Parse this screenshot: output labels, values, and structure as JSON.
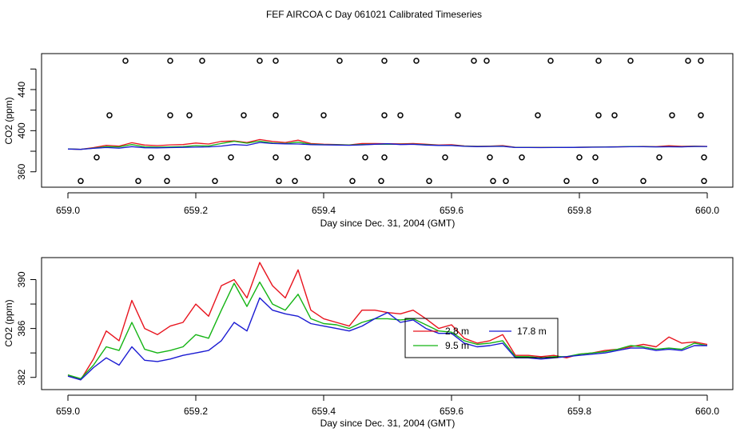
{
  "title": "FEF AIRCOA C  Day 061021  Calibrated Timeseries",
  "colors": {
    "red": "#e8141e",
    "green": "#14b414",
    "blue": "#1a1ad2",
    "axis": "#000000"
  },
  "chart_data": [
    {
      "type": "scatter+line",
      "xlabel": "Day since Dec. 31, 2004 (GMT)",
      "ylabel": "CO2 (ppm)",
      "xlim": [
        659.0,
        660.0
      ],
      "ylim": [
        345,
        475
      ],
      "x_ticks": [
        659.0,
        659.2,
        659.4,
        659.6,
        659.8,
        660.0
      ],
      "x_tick_labels": [
        "659.0",
        "659.2",
        "659.4",
        "659.6",
        "659.8",
        "660.0"
      ],
      "y_ticks": [
        360,
        380,
        400,
        420,
        440,
        460
      ],
      "y_tick_labels": [
        "360",
        "",
        "400",
        "",
        "440",
        ""
      ],
      "points": [
        {
          "x": 659.09,
          "y": 468
        },
        {
          "x": 659.16,
          "y": 468
        },
        {
          "x": 659.21,
          "y": 468
        },
        {
          "x": 659.3,
          "y": 468
        },
        {
          "x": 659.325,
          "y": 468
        },
        {
          "x": 659.425,
          "y": 468
        },
        {
          "x": 659.495,
          "y": 468
        },
        {
          "x": 659.545,
          "y": 468
        },
        {
          "x": 659.635,
          "y": 468
        },
        {
          "x": 659.655,
          "y": 468
        },
        {
          "x": 659.755,
          "y": 468
        },
        {
          "x": 659.83,
          "y": 468
        },
        {
          "x": 659.88,
          "y": 468
        },
        {
          "x": 659.97,
          "y": 468
        },
        {
          "x": 659.99,
          "y": 468
        },
        {
          "x": 659.065,
          "y": 415
        },
        {
          "x": 659.16,
          "y": 415
        },
        {
          "x": 659.19,
          "y": 415
        },
        {
          "x": 659.275,
          "y": 415
        },
        {
          "x": 659.325,
          "y": 415
        },
        {
          "x": 659.4,
          "y": 415
        },
        {
          "x": 659.495,
          "y": 415
        },
        {
          "x": 659.52,
          "y": 415
        },
        {
          "x": 659.61,
          "y": 415
        },
        {
          "x": 659.735,
          "y": 415
        },
        {
          "x": 659.83,
          "y": 415
        },
        {
          "x": 659.855,
          "y": 415
        },
        {
          "x": 659.945,
          "y": 415
        },
        {
          "x": 659.99,
          "y": 415
        },
        {
          "x": 659.045,
          "y": 374
        },
        {
          "x": 659.13,
          "y": 374
        },
        {
          "x": 659.155,
          "y": 374
        },
        {
          "x": 659.255,
          "y": 374
        },
        {
          "x": 659.325,
          "y": 374
        },
        {
          "x": 659.375,
          "y": 374
        },
        {
          "x": 659.465,
          "y": 374
        },
        {
          "x": 659.495,
          "y": 374
        },
        {
          "x": 659.59,
          "y": 374
        },
        {
          "x": 659.66,
          "y": 374
        },
        {
          "x": 659.71,
          "y": 374
        },
        {
          "x": 659.8,
          "y": 374
        },
        {
          "x": 659.825,
          "y": 374
        },
        {
          "x": 659.925,
          "y": 374
        },
        {
          "x": 659.995,
          "y": 374
        },
        {
          "x": 659.02,
          "y": 351
        },
        {
          "x": 659.11,
          "y": 351
        },
        {
          "x": 659.155,
          "y": 351
        },
        {
          "x": 659.23,
          "y": 351
        },
        {
          "x": 659.33,
          "y": 351
        },
        {
          "x": 659.355,
          "y": 351
        },
        {
          "x": 659.445,
          "y": 351
        },
        {
          "x": 659.49,
          "y": 351
        },
        {
          "x": 659.565,
          "y": 351
        },
        {
          "x": 659.665,
          "y": 351
        },
        {
          "x": 659.685,
          "y": 351
        },
        {
          "x": 659.78,
          "y": 351
        },
        {
          "x": 659.825,
          "y": 351
        },
        {
          "x": 659.9,
          "y": 351
        },
        {
          "x": 659.995,
          "y": 351
        }
      ]
    },
    {
      "type": "line",
      "xlabel": "Day since Dec. 31, 2004 (GMT)",
      "ylabel": "CO2 (ppm)",
      "xlim": [
        659.0,
        660.0
      ],
      "ylim": [
        381.0,
        391.8
      ],
      "x_ticks": [
        659.0,
        659.2,
        659.4,
        659.6,
        659.8,
        660.0
      ],
      "x_tick_labels": [
        "659.0",
        "659.2",
        "659.4",
        "659.6",
        "659.8",
        "660.0"
      ],
      "y_ticks": [
        382,
        384,
        386,
        388,
        390
      ],
      "y_tick_labels": [
        "382",
        "",
        "386",
        "",
        "390"
      ],
      "x": [
        659.0,
        659.02,
        659.04,
        659.06,
        659.08,
        659.1,
        659.12,
        659.14,
        659.16,
        659.18,
        659.2,
        659.22,
        659.24,
        659.26,
        659.28,
        659.3,
        659.32,
        659.34,
        659.36,
        659.38,
        659.4,
        659.42,
        659.44,
        659.46,
        659.48,
        659.5,
        659.52,
        659.54,
        659.56,
        659.58,
        659.6,
        659.62,
        659.64,
        659.66,
        659.68,
        659.7,
        659.72,
        659.74,
        659.76,
        659.78,
        659.8,
        659.82,
        659.84,
        659.86,
        659.88,
        659.9,
        659.92,
        659.94,
        659.96,
        659.98,
        660.0
      ],
      "series": [
        {
          "name": "2.8 m",
          "color": "red",
          "values": [
            382.2,
            381.8,
            383.5,
            385.8,
            385.0,
            388.3,
            386.0,
            385.5,
            386.2,
            386.5,
            388.0,
            387.0,
            389.5,
            390.0,
            388.5,
            391.4,
            389.5,
            388.5,
            390.8,
            387.5,
            386.8,
            386.5,
            386.2,
            387.5,
            387.5,
            387.3,
            387.2,
            387.5,
            386.8,
            386.0,
            386.3,
            385.2,
            384.8,
            385.0,
            385.5,
            383.8,
            383.8,
            383.7,
            383.8,
            383.6,
            383.9,
            384.0,
            384.2,
            384.3,
            384.5,
            384.7,
            384.5,
            385.3,
            384.8,
            384.9,
            384.7
          ]
        },
        {
          "name": "9.5 m",
          "color": "green",
          "values": [
            382.2,
            381.9,
            383.0,
            384.5,
            384.2,
            386.5,
            384.3,
            384.0,
            384.2,
            384.5,
            385.5,
            385.2,
            387.5,
            389.7,
            387.8,
            389.8,
            388.0,
            387.5,
            388.8,
            386.8,
            386.4,
            386.3,
            386.0,
            386.5,
            386.8,
            386.8,
            386.7,
            386.8,
            386.3,
            385.8,
            385.7,
            385.0,
            384.7,
            384.8,
            385.0,
            383.7,
            383.7,
            383.6,
            383.7,
            383.7,
            383.9,
            384.0,
            384.1,
            384.3,
            384.6,
            384.5,
            384.3,
            384.4,
            384.3,
            384.8,
            384.6
          ]
        },
        {
          "name": "17.8 m",
          "color": "blue",
          "values": [
            382.1,
            381.8,
            382.8,
            383.6,
            383.0,
            384.5,
            383.4,
            383.3,
            383.5,
            383.8,
            384.0,
            384.2,
            385.0,
            386.5,
            385.8,
            388.5,
            387.5,
            387.2,
            387.0,
            386.4,
            386.2,
            386.0,
            385.8,
            386.2,
            386.8,
            387.3,
            386.5,
            386.7,
            386.0,
            385.6,
            385.6,
            384.8,
            384.5,
            384.6,
            384.8,
            383.6,
            383.6,
            383.5,
            383.6,
            383.7,
            383.8,
            383.9,
            384.0,
            384.2,
            384.4,
            384.4,
            384.2,
            384.3,
            384.2,
            384.6,
            384.6
          ]
        }
      ],
      "legend": {
        "placement": "center-right",
        "entries": [
          "2.8 m",
          "17.8 m",
          "9.5 m"
        ]
      }
    }
  ]
}
